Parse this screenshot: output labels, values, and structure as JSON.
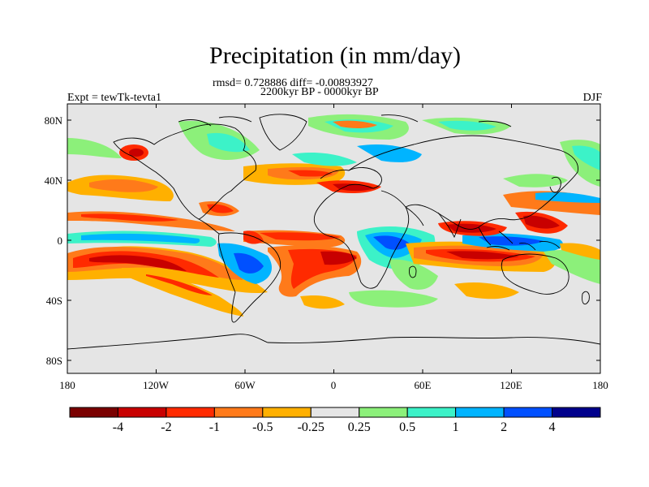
{
  "map": {
    "title": "Precipitation (in mm/day)",
    "stats_line": "rmsd= 0.728886 diff= -0.00893927",
    "period_line": "2200kyr BP - 0000kyr BP",
    "left_label": "Expt = tewTk-tevta1",
    "right_label": "DJF",
    "projection": "cylindrical-equidistant",
    "lat_ticks": [
      "80N",
      "40N",
      "0",
      "40S",
      "80S"
    ],
    "lon_ticks": [
      "180",
      "120W",
      "60W",
      "0",
      "60E",
      "120E",
      "180"
    ]
  },
  "colorbar": {
    "labels": [
      "-4",
      "-2",
      "-1",
      "-0.5",
      "-0.25",
      "0.25",
      "0.5",
      "1",
      "2",
      "4"
    ],
    "colors": [
      "#7a0000",
      "#c80000",
      "#ff2a00",
      "#ff7a1a",
      "#ffb000",
      "#e5e5e5",
      "#8cf07a",
      "#3cf2c8",
      "#00b4ff",
      "#0050ff",
      "#00008c"
    ]
  }
}
